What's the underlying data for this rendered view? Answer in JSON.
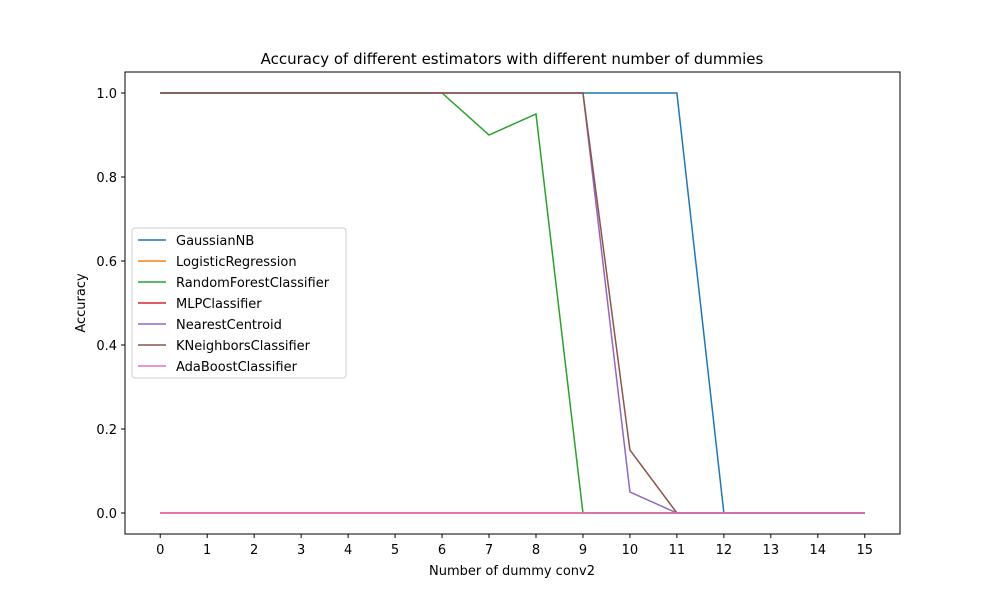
{
  "chart_data": {
    "type": "line",
    "title": "Accuracy of different estimators with different number of dummies",
    "xlabel": "Number of dummy conv2",
    "ylabel": "Accuracy",
    "x": [
      0,
      1,
      2,
      3,
      4,
      5,
      6,
      7,
      8,
      9,
      10,
      11,
      12,
      13,
      14,
      15
    ],
    "x_ticks": [
      "0",
      "1",
      "2",
      "3",
      "4",
      "5",
      "6",
      "7",
      "8",
      "9",
      "10",
      "11",
      "12",
      "13",
      "14",
      "15"
    ],
    "y_ticks": [
      "0.0",
      "0.2",
      "0.4",
      "0.6",
      "0.8",
      "1.0"
    ],
    "xlim": [
      -0.75,
      15.75
    ],
    "ylim": [
      -0.05,
      1.05
    ],
    "grid": false,
    "legend_position": "center-left",
    "series": [
      {
        "name": "GaussianNB",
        "color": "#1f77b4",
        "values": [
          1,
          1,
          1,
          1,
          1,
          1,
          1,
          1,
          1,
          1,
          1,
          1,
          0,
          0,
          0,
          0
        ]
      },
      {
        "name": "LogisticRegression",
        "color": "#ff7f0e",
        "values": [
          0,
          0,
          0,
          0,
          0,
          0,
          0,
          0,
          0,
          0,
          0,
          0,
          0,
          0,
          0,
          0
        ]
      },
      {
        "name": "RandomForestClassifier",
        "color": "#2ca02c",
        "values": [
          1,
          1,
          1,
          1,
          1,
          1,
          1,
          0.9,
          0.95,
          0,
          0,
          0,
          0,
          0,
          0,
          0
        ]
      },
      {
        "name": "MLPClassifier",
        "color": "#d62728",
        "values": [
          0,
          0,
          0,
          0,
          0,
          0,
          0,
          0,
          0,
          0,
          0,
          0,
          0,
          0,
          0,
          0
        ]
      },
      {
        "name": "NearestCentroid",
        "color": "#9467bd",
        "values": [
          1,
          1,
          1,
          1,
          1,
          1,
          1,
          1,
          1,
          1,
          0.05,
          0,
          0,
          0,
          0,
          0
        ]
      },
      {
        "name": "KNeighborsClassifier",
        "color": "#8c564b",
        "values": [
          1,
          1,
          1,
          1,
          1,
          1,
          1,
          1,
          1,
          1,
          0.15,
          0,
          0,
          0,
          0,
          0
        ]
      },
      {
        "name": "AdaBoostClassifier",
        "color": "#e377c2",
        "values": [
          0,
          0,
          0,
          0,
          0,
          0,
          0,
          0,
          0,
          0,
          0,
          0,
          0,
          0,
          0,
          0
        ]
      }
    ]
  }
}
